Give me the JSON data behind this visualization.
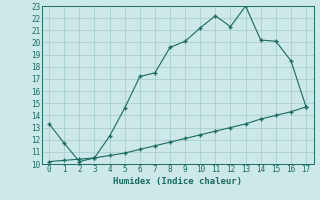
{
  "title": "",
  "xlabel": "Humidex (Indice chaleur)",
  "ylabel": "",
  "bg_color": "#cce8e8",
  "line_color": "#1a6b60",
  "grid_color": "#aacece",
  "x_line1": [
    0,
    1,
    2,
    3,
    4,
    5,
    6,
    7,
    8,
    9,
    10,
    11,
    12,
    13,
    14,
    15,
    16,
    17
  ],
  "y_line1": [
    13.3,
    11.7,
    10.2,
    10.5,
    12.3,
    14.6,
    17.2,
    17.5,
    19.6,
    20.1,
    21.2,
    22.2,
    21.3,
    23.0,
    20.2,
    20.1,
    18.5,
    14.7
  ],
  "x_line2": [
    0,
    1,
    2,
    3,
    4,
    5,
    6,
    7,
    8,
    9,
    10,
    11,
    12,
    13,
    14,
    15,
    16,
    17
  ],
  "y_line2": [
    10.2,
    10.3,
    10.4,
    10.5,
    10.7,
    10.9,
    11.2,
    11.5,
    11.8,
    12.1,
    12.4,
    12.7,
    13.0,
    13.3,
    13.7,
    14.0,
    14.3,
    14.7
  ],
  "xlim": [
    -0.5,
    17.5
  ],
  "ylim": [
    10,
    23
  ],
  "xticks": [
    0,
    1,
    2,
    3,
    4,
    5,
    6,
    7,
    8,
    9,
    10,
    11,
    12,
    13,
    14,
    15,
    16,
    17
  ],
  "yticks": [
    10,
    11,
    12,
    13,
    14,
    15,
    16,
    17,
    18,
    19,
    20,
    21,
    22,
    23
  ],
  "tick_fontsize": 5.5,
  "xlabel_fontsize": 6.5
}
